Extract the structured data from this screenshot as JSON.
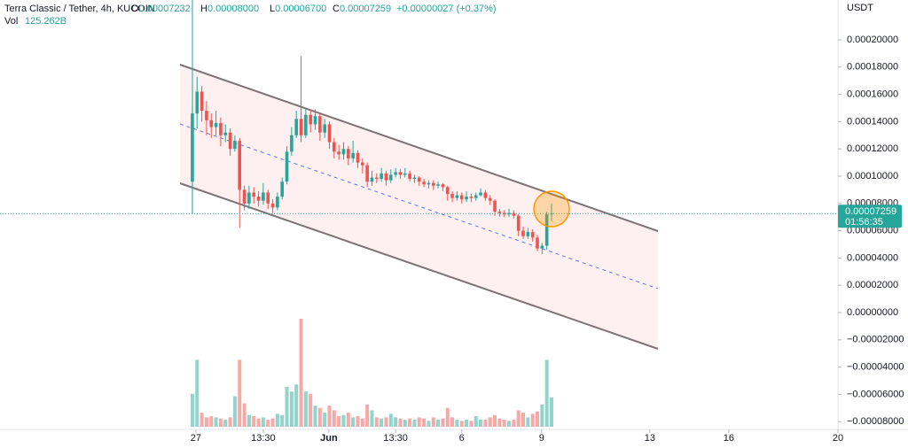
{
  "chart_data": {
    "type": "candlestick",
    "title": "Terra Classic / Tether, 4h, KUCOIN",
    "ohlc_legend": [
      {
        "label": "O",
        "value": "0.00007232"
      },
      {
        "label": "H",
        "value": "0.00008000"
      },
      {
        "label": "L",
        "value": "0.00006700"
      },
      {
        "label": "C",
        "value": "0.00007259"
      }
    ],
    "change": "+0.00000027 (+0.37%)",
    "volume_legend": {
      "label": "Vol",
      "value": "125.262B"
    },
    "y_axis_label": "USDT",
    "last_price_label": "0.00007259",
    "countdown": "01:56:35",
    "up_color": "#26a69a",
    "down_color": "#ef5350",
    "up_volume_color": "#93d3cb",
    "down_volume_color": "#f7a9a7",
    "grid": false,
    "xlim": [
      -40.7,
      136.6
    ],
    "xticks": [
      {
        "value": 0.75,
        "label": "27"
      },
      {
        "value": 15,
        "label": "13:30"
      },
      {
        "value": 28.9,
        "label": "Jun"
      },
      {
        "value": 43,
        "label": "13:30"
      },
      {
        "value": 57,
        "label": "6"
      },
      {
        "value": 73.9,
        "label": "9"
      },
      {
        "value": 96.8,
        "label": "13"
      },
      {
        "value": 113.5,
        "label": "16"
      },
      {
        "value": 136.6,
        "label": "20"
      }
    ],
    "ylim": [
      -8.57e-05,
      0.0002292
    ],
    "yticks": [
      {
        "value": 0.0002,
        "label": "0.00020000"
      },
      {
        "value": 0.00018,
        "label": "0.00018000"
      },
      {
        "value": 0.00016,
        "label": "0.00016000"
      },
      {
        "value": 0.00014,
        "label": "0.00014000"
      },
      {
        "value": 0.00012,
        "label": "0.00012000"
      },
      {
        "value": 0.0001,
        "label": "0.00010000"
      },
      {
        "value": 8e-05,
        "label": "0.00008000"
      },
      {
        "value": 6e-05,
        "label": "0.00006000"
      },
      {
        "value": 4e-05,
        "label": "0.00004000"
      },
      {
        "value": 2e-05,
        "label": "0.00002000"
      },
      {
        "value": 0,
        "label": "0.00000000"
      },
      {
        "value": -2e-05,
        "label": "−0.00002000"
      },
      {
        "value": -4e-05,
        "label": "−0.00004000"
      },
      {
        "value": -6e-05,
        "label": "−0.00006000"
      },
      {
        "value": -8e-05,
        "label": "−0.00008000"
      }
    ],
    "open": [
      9.6e-05,
      0.000146,
      0.000162,
      0.000148,
      0.000141,
      0.000136,
      0.000139,
      0.00013,
      0.000132,
      0.00012,
      0.000126,
      9e-05,
      8e-05,
      8.8e-05,
      8.5e-05,
      8.2e-05,
      8.8e-05,
      8e-05,
      7.7e-05,
      8.5e-05,
      9.6e-05,
      0.000118,
      0.00013,
      0.000142,
      0.00013,
      0.000145,
      0.000138,
      0.000144,
      0.000132,
      0.000138,
      0.000125,
      0.000118,
      0.000116,
      0.00012,
      0.000113,
      0.000117,
      0.00011,
      0.000108,
      9.6e-05,
      9.9e-05,
      9.8e-05,
      0.000102,
      9.7e-05,
      0.000101,
      0.000103,
      0.000101,
      0.000102,
      9.8e-05,
      9.9e-05,
      9.6e-05,
      9.4e-05,
      9.5e-05,
      9.3e-05,
      9.4e-05,
      9.2e-05,
      8.7e-05,
      8.4e-05,
      8.6e-05,
      8.3e-05,
      8.5e-05,
      8.4e-05,
      8.6e-05,
      8.8e-05,
      8.4e-05,
      8.2e-05,
      7.4e-05,
      7.3e-05,
      7.2e-05,
      7.3e-05,
      7.1e-05,
      6e-05,
      5.6e-05,
      5.9e-05,
      5.5e-05,
      4.7e-05,
      4.9e-05,
      7.232e-05
    ],
    "high": [
      0.000152,
      0.000173,
      0.000166,
      0.000155,
      0.000146,
      0.000148,
      0.000143,
      0.000138,
      0.000135,
      0.00013,
      0.000128,
      9.3e-05,
      9.3e-05,
      9.2e-05,
      8.9e-05,
      9.5e-05,
      9e-05,
      8.3e-05,
      8.8e-05,
      9.9e-05,
      0.000122,
      0.000136,
      0.000148,
      0.000188,
      0.00015,
      0.000149,
      0.000149,
      0.000146,
      0.000142,
      0.00014,
      0.000128,
      0.000123,
      0.000125,
      0.000122,
      0.000126,
      0.000119,
      0.000113,
      0.00011,
      0.000104,
      0.000102,
      0.000106,
      0.000104,
      0.000105,
      0.000106,
      0.000105,
      0.000106,
      0.000104,
      0.000101,
      0.0001,
      9.8e-05,
      9.7e-05,
      9.7e-05,
      9.6e-05,
      9.5e-05,
      9.3e-05,
      8.9e-05,
      8.9e-05,
      8.8e-05,
      8.9e-05,
      8.7e-05,
      8.8e-05,
      9.1e-05,
      9e-05,
      8.6e-05,
      8.3e-05,
      7.6e-05,
      7.5e-05,
      7.6e-05,
      7.5e-05,
      7.2e-05,
      6.3e-05,
      6.2e-05,
      6.1e-05,
      5.7e-05,
      5.1e-05,
      7.4e-05,
      8e-05
    ],
    "low": [
      7.2e-05,
      0.000135,
      0.00014,
      0.00013,
      0.000128,
      0.00013,
      0.000122,
      0.000125,
      0.000115,
      0.000118,
      6.2e-05,
      7.5e-05,
      7.6e-05,
      8e-05,
      7.8e-05,
      7.9e-05,
      7.6e-05,
      7.3e-05,
      7.5e-05,
      8.3e-05,
      9.4e-05,
      0.000115,
      0.000128,
      0.000125,
      0.000128,
      0.000132,
      0.000134,
      0.000126,
      0.000128,
      0.00012,
      0.000113,
      0.000112,
      0.000112,
      0.000108,
      0.00011,
      0.000106,
      0.000102,
      9.2e-05,
      9.3e-05,
      9.5e-05,
      9.6e-05,
      9.3e-05,
      9.5e-05,
      9.9e-05,
      9.8e-05,
      9.9e-05,
      9.6e-05,
      9.5e-05,
      9.3e-05,
      9.2e-05,
      9.1e-05,
      9e-05,
      9.1e-05,
      8.9e-05,
      8.2e-05,
      8.1e-05,
      8.2e-05,
      8e-05,
      8.1e-05,
      8.1e-05,
      8.2e-05,
      8.5e-05,
      8.2e-05,
      7.9e-05,
      7.1e-05,
      7e-05,
      7e-05,
      7e-05,
      6.9e-05,
      5.6e-05,
      5.4e-05,
      5.4e-05,
      5.2e-05,
      4.5e-05,
      4.3e-05,
      4.6e-05,
      6.7e-05
    ],
    "close": [
      0.000146,
      0.000162,
      0.000148,
      0.000141,
      0.000136,
      0.000139,
      0.00013,
      0.000132,
      0.00012,
      0.000126,
      9e-05,
      8e-05,
      8.8e-05,
      8.5e-05,
      8.2e-05,
      8.8e-05,
      8e-05,
      7.7e-05,
      8.5e-05,
      9.6e-05,
      0.000118,
      0.00013,
      0.000142,
      0.00013,
      0.000145,
      0.000138,
      0.000144,
      0.000132,
      0.000138,
      0.000125,
      0.000118,
      0.000116,
      0.00012,
      0.000113,
      0.000117,
      0.00011,
      0.000108,
      9.6e-05,
      9.9e-05,
      9.8e-05,
      0.000102,
      9.7e-05,
      0.000101,
      0.000103,
      0.000101,
      0.000102,
      9.8e-05,
      9.9e-05,
      9.6e-05,
      9.4e-05,
      9.5e-05,
      9.3e-05,
      9.4e-05,
      9.2e-05,
      8.7e-05,
      8.4e-05,
      8.6e-05,
      8.3e-05,
      8.5e-05,
      8.4e-05,
      8.6e-05,
      8.8e-05,
      8.4e-05,
      8.2e-05,
      7.4e-05,
      7.3e-05,
      7.2e-05,
      7.3e-05,
      7.1e-05,
      6e-05,
      5.6e-05,
      5.9e-05,
      5.5e-05,
      4.7e-05,
      4.9e-05,
      7.2e-05,
      7.259e-05
    ],
    "volume": [
      140,
      285,
      60,
      40,
      45,
      40,
      35,
      30,
      40,
      130,
      285,
      100,
      50,
      45,
      35,
      40,
      30,
      35,
      55,
      50,
      170,
      150,
      180,
      460,
      150,
      140,
      90,
      80,
      60,
      90,
      70,
      45,
      50,
      60,
      40,
      45,
      35,
      95,
      70,
      40,
      35,
      40,
      55,
      40,
      35,
      30,
      35,
      30,
      40,
      35,
      25,
      40,
      30,
      35,
      80,
      40,
      30,
      25,
      30,
      25,
      45,
      30,
      30,
      40,
      50,
      35,
      30,
      25,
      30,
      70,
      60,
      40,
      55,
      65,
      95,
      285,
      125.262
    ]
  }
}
